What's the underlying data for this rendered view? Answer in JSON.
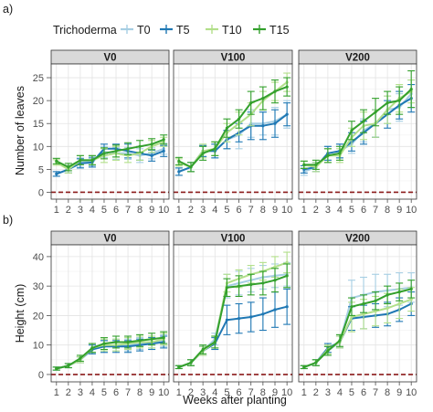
{
  "legend": {
    "title": "Trichoderma",
    "entries": [
      {
        "name": "T0",
        "color": "#a6cee3"
      },
      {
        "name": "T5",
        "color": "#1f78b4"
      },
      {
        "name": "T10",
        "color": "#b2df8a"
      },
      {
        "name": "T15",
        "color": "#33a02c"
      }
    ]
  },
  "xlabel": "Weeks after planting",
  "chart_data": [
    {
      "type": "line",
      "panel_label": "a)",
      "ylabel": "Number of leaves",
      "ylim": [
        -1.5,
        28
      ],
      "yticks": [
        0,
        5,
        10,
        15,
        20,
        25
      ],
      "x": [
        1,
        2,
        3,
        4,
        5,
        6,
        7,
        8,
        9,
        10
      ],
      "reference_line": 0,
      "facets": [
        {
          "label": "V0",
          "series": [
            {
              "name": "T0",
              "values": [
                4,
                5,
                6.5,
                6.8,
                8.8,
                8.5,
                8.5,
                8.0,
                8.5,
                9.5
              ],
              "errors": [
                0.5,
                0.8,
                1.0,
                1.0,
                1.2,
                1.3,
                1.3,
                1.5,
                1.2,
                1.2
              ]
            },
            {
              "name": "T5",
              "values": [
                4,
                5,
                6.3,
                6.5,
                9.5,
                9.5,
                9.0,
                8.5,
                8.0,
                9.0
              ],
              "errors": [
                0.5,
                0.8,
                1.0,
                1.0,
                1.0,
                1.0,
                1.5,
                1.5,
                1.2,
                1.2
              ]
            },
            {
              "name": "T10",
              "values": [
                6.5,
                5,
                7.0,
                7.0,
                8.0,
                8.5,
                8.0,
                8.5,
                10.0,
                11.0
              ],
              "errors": [
                0.6,
                0.8,
                1.0,
                1.0,
                1.5,
                1.5,
                1.5,
                1.5,
                1.3,
                1.0
              ]
            },
            {
              "name": "T15",
              "values": [
                6.8,
                5.5,
                7.0,
                7.0,
                8.5,
                9.0,
                9.5,
                10.0,
                10.5,
                11.5
              ],
              "errors": [
                0.6,
                0.8,
                1.0,
                1.0,
                1.2,
                1.3,
                1.3,
                1.3,
                1.2,
                1.0
              ]
            }
          ]
        },
        {
          "label": "V100",
          "series": [
            {
              "name": "T0",
              "values": [
                4.5,
                5.5,
                9.0,
                9.0,
                11.5,
                12.5,
                15.0,
                15.0,
                15.5,
                17.0
              ],
              "errors": [
                0.8,
                1.0,
                1.2,
                1.5,
                2.0,
                3.0,
                3.0,
                2.5,
                3.0,
                3.0
              ]
            },
            {
              "name": "T5",
              "values": [
                4.5,
                5.5,
                9.0,
                9.0,
                11.5,
                13.0,
                14.5,
                14.5,
                15.0,
                17.0
              ],
              "errors": [
                0.8,
                1.0,
                1.2,
                1.5,
                2.0,
                2.0,
                3.0,
                3.0,
                3.0,
                2.5
              ]
            },
            {
              "name": "T10",
              "values": [
                6.5,
                5.5,
                9.0,
                9.5,
                13.0,
                15.0,
                17.0,
                20.0,
                22.0,
                24.0
              ],
              "errors": [
                0.8,
                1.0,
                1.5,
                1.5,
                2.0,
                2.5,
                2.5,
                2.0,
                2.0,
                2.0
              ]
            },
            {
              "name": "T15",
              "values": [
                6.8,
                5.5,
                8.5,
                9.5,
                14.0,
                16.0,
                19.5,
                20.5,
                22.0,
                23.0
              ],
              "errors": [
                0.8,
                1.0,
                1.5,
                1.5,
                2.0,
                2.0,
                2.5,
                2.5,
                2.5,
                2.0
              ]
            }
          ]
        },
        {
          "label": "V200",
          "series": [
            {
              "name": "T0",
              "values": [
                4.5,
                5.5,
                8.5,
                9.0,
                10.5,
                13.5,
                15.0,
                18.0,
                18.5,
                21.5
              ],
              "errors": [
                0.8,
                1.0,
                1.5,
                1.5,
                2.0,
                2.5,
                3.0,
                3.0,
                3.0,
                3.0
              ]
            },
            {
              "name": "T5",
              "values": [
                5.0,
                5.5,
                8.5,
                9.0,
                11.0,
                13.0,
                15.0,
                17.0,
                19.0,
                20.5
              ],
              "errors": [
                0.8,
                1.0,
                1.5,
                1.5,
                2.0,
                2.5,
                3.0,
                3.0,
                3.0,
                3.0
              ]
            },
            {
              "name": "T10",
              "values": [
                6.0,
                5.5,
                8.0,
                8.0,
                12.0,
                14.5,
                15.0,
                18.0,
                20.5,
                22.0
              ],
              "errors": [
                0.8,
                1.0,
                1.5,
                1.5,
                2.0,
                3.0,
                3.0,
                3.0,
                3.0,
                2.5
              ]
            },
            {
              "name": "T15",
              "values": [
                6.0,
                6.0,
                8.0,
                8.5,
                13.5,
                15.5,
                17.5,
                19.5,
                20.0,
                22.5
              ],
              "errors": [
                0.8,
                1.0,
                1.5,
                1.5,
                2.0,
                2.5,
                3.0,
                2.5,
                3.0,
                4.0
              ]
            }
          ]
        }
      ]
    },
    {
      "type": "line",
      "panel_label": "b)",
      "ylabel": "Height (cm)",
      "ylim": [
        -2.5,
        44
      ],
      "yticks": [
        0,
        10,
        20,
        30,
        40
      ],
      "x": [
        1,
        2,
        3,
        4,
        5,
        6,
        7,
        8,
        9,
        10
      ],
      "reference_line": 0,
      "facets": [
        {
          "label": "V0",
          "series": [
            {
              "name": "T0",
              "values": [
                2,
                3,
                5,
                9,
                9.5,
                10,
                10,
                10.5,
                11,
                11.5
              ],
              "errors": [
                0.5,
                0.7,
                1.0,
                1.5,
                2.0,
                2.0,
                2.0,
                2.0,
                2.0,
                2.0
              ]
            },
            {
              "name": "T5",
              "values": [
                2,
                3,
                5,
                8.5,
                9.5,
                9.5,
                9.5,
                10,
                10.5,
                11
              ],
              "errors": [
                0.5,
                0.7,
                1.0,
                1.5,
                2.0,
                2.0,
                2.0,
                2.0,
                2.0,
                2.0
              ]
            },
            {
              "name": "T10",
              "values": [
                2,
                3,
                5,
                9,
                10,
                10,
                10.5,
                11,
                11,
                12
              ],
              "errors": [
                0.5,
                0.7,
                1.0,
                1.5,
                2.0,
                2.0,
                2.0,
                2.0,
                2.0,
                2.0
              ]
            },
            {
              "name": "T15",
              "values": [
                2,
                3,
                5.5,
                9,
                10.5,
                11,
                11,
                11.5,
                12,
                12.5
              ],
              "errors": [
                0.5,
                0.7,
                1.0,
                1.5,
                2.0,
                2.0,
                2.0,
                2.0,
                2.0,
                2.0
              ]
            }
          ]
        },
        {
          "label": "V100",
          "series": [
            {
              "name": "T0",
              "values": [
                2.5,
                4,
                8,
                12,
                30,
                31,
                32,
                33,
                33.5,
                34
              ],
              "errors": [
                0.5,
                1.0,
                1.5,
                2.0,
                4.0,
                4.0,
                4.0,
                4.0,
                4.0,
                4.0
              ]
            },
            {
              "name": "T5",
              "values": [
                2.5,
                4,
                8,
                10.5,
                18.5,
                19,
                19.5,
                20.5,
                22,
                23
              ],
              "errors": [
                0.5,
                1.0,
                1.5,
                2.0,
                5.0,
                5.0,
                5.0,
                5.5,
                6.0,
                6.0
              ]
            },
            {
              "name": "T10",
              "values": [
                2.5,
                4,
                8,
                11,
                31,
                32.5,
                34,
                35,
                36.5,
                38
              ],
              "errors": [
                0.5,
                1.0,
                1.5,
                2.0,
                3.0,
                3.0,
                3.0,
                3.0,
                3.5,
                3.5
              ]
            },
            {
              "name": "T15",
              "values": [
                2.5,
                4,
                8.5,
                11,
                29.5,
                30,
                30.5,
                31,
                32,
                33.5
              ],
              "errors": [
                0.5,
                1.0,
                1.5,
                2.0,
                3.0,
                3.5,
                3.5,
                4.0,
                4.0,
                4.0
              ]
            }
          ]
        },
        {
          "label": "V200",
          "series": [
            {
              "name": "T0",
              "values": [
                2.5,
                4,
                8,
                11,
                26,
                27,
                28,
                28.5,
                29,
                29.5
              ],
              "errors": [
                0.5,
                1.0,
                1.5,
                2.0,
                6.0,
                6.0,
                6.0,
                5.5,
                5.5,
                5.0
              ]
            },
            {
              "name": "T5",
              "values": [
                2.5,
                4,
                9,
                11,
                19,
                19.5,
                20,
                20.5,
                22,
                24
              ],
              "errors": [
                0.5,
                1.0,
                1.5,
                2.0,
                4.0,
                4.0,
                4.0,
                4.0,
                4.0,
                4.0
              ]
            },
            {
              "name": "T10",
              "values": [
                2.5,
                4,
                8.5,
                11,
                19.5,
                20.5,
                21.5,
                22.5,
                24,
                25.5
              ],
              "errors": [
                0.5,
                1.0,
                1.5,
                2.0,
                5.0,
                5.0,
                5.0,
                5.0,
                5.0,
                4.0
              ]
            },
            {
              "name": "T15",
              "values": [
                2.5,
                4,
                8,
                11.5,
                23,
                24,
                25,
                27,
                28,
                29
              ],
              "errors": [
                0.5,
                1.0,
                1.5,
                2.0,
                3.0,
                3.0,
                3.0,
                3.0,
                3.0,
                3.0
              ]
            }
          ]
        }
      ]
    }
  ]
}
